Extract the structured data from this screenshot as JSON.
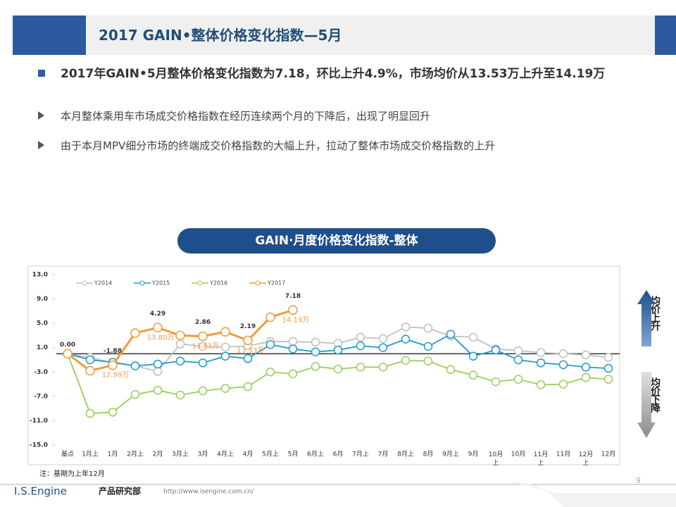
{
  "header": {
    "title": "2017 GAIN•整体价格变化指数—5月"
  },
  "bullets": {
    "main": "2017年GAIN•5月整体价格变化指数为7.18，环比上升4.9%，市场均价从13.53万上升至14.19万",
    "items": [
      "本月整体乘用车市场成交价格指数在经历连续两个月的下降后，出现了明显回升",
      "由于本月MPV细分市场的终端成交价格指数的大幅上升，拉动了整体市场成交价格指数的上升"
    ]
  },
  "chart_data": {
    "type": "line",
    "title": "GAIN·月度价格变化指数-整体",
    "categories": [
      "基点",
      "1月上",
      "1月",
      "2月上",
      "2月",
      "3月上",
      "3月",
      "4月上",
      "4月",
      "5月上",
      "5月",
      "6月上",
      "6月",
      "7月上",
      "7月",
      "8月上",
      "8月",
      "9月上",
      "9月",
      "10月上",
      "10月",
      "11月上",
      "11月",
      "12月上",
      "12月"
    ],
    "series": [
      {
        "name": "Y2014",
        "color": "#c0c0c0",
        "values": [
          0,
          -0.6,
          -1.5,
          -2.0,
          -2.9,
          1.6,
          1.2,
          1.1,
          1.3,
          2.0,
          2.0,
          1.9,
          1.7,
          2.7,
          2.5,
          4.4,
          4.2,
          2.9,
          2.7,
          0.8,
          0.5,
          0.2,
          0.0,
          -0.2,
          -0.6
        ]
      },
      {
        "name": "Y2015",
        "color": "#1f9bc9",
        "values": [
          0,
          -1.0,
          -1.4,
          -2.0,
          -1.7,
          -1.2,
          -1.5,
          -0.4,
          -0.8,
          1.5,
          0.8,
          0.3,
          0.6,
          1.3,
          1.0,
          2.4,
          1.2,
          3.2,
          -0.4,
          0.6,
          -1.0,
          -1.5,
          -1.8,
          -2.2,
          -2.4
        ]
      },
      {
        "name": "Y2016",
        "color": "#9acd5a",
        "values": [
          0,
          -9.8,
          -9.6,
          -6.7,
          -6.0,
          -6.8,
          -6.1,
          -5.7,
          -5.4,
          -3.0,
          -3.3,
          -2.1,
          -2.5,
          -2.2,
          -2.2,
          -1.1,
          -1.2,
          -2.6,
          -3.5,
          -4.6,
          -4.2,
          -5.1,
          -5.0,
          -3.9,
          -4.2
        ]
      },
      {
        "name": "Y2017",
        "color": "#f39a3c",
        "values": [
          0,
          -2.8,
          -1.88,
          3.4,
          4.29,
          3.0,
          2.86,
          3.6,
          2.19,
          6.0,
          7.18,
          null,
          null,
          null,
          null,
          null,
          null,
          null,
          null,
          null,
          null,
          null,
          null,
          null,
          null
        ],
        "value_labels": [
          "0.00",
          null,
          "-1.88",
          null,
          "4.29",
          null,
          "2.86",
          null,
          "2.19",
          null,
          "7.18",
          null,
          null,
          null,
          null,
          null,
          null,
          null,
          null,
          null,
          null,
          null,
          null,
          null,
          null
        ]
      }
    ],
    "ylim": [
      -15,
      13
    ],
    "yticks": [
      {
        "value": 13,
        "label": "13.0"
      },
      {
        "value": 9,
        "label": "9.0"
      },
      {
        "value": 5,
        "label": "5.0"
      },
      {
        "value": 1,
        "label": "1.0"
      },
      {
        "value": -3,
        "label": "-3.0"
      },
      {
        "value": -7,
        "label": "-7.0"
      },
      {
        "value": -11,
        "label": "-11.0"
      },
      {
        "value": -15,
        "label": "-15.0"
      }
    ],
    "grid": false,
    "annotations": [
      {
        "category": "1月",
        "text": "12.99万"
      },
      {
        "category": "2月",
        "text": "13.80万"
      },
      {
        "category": "3月",
        "text": "13.61万"
      },
      {
        "category": "4月",
        "text": "13.53万"
      },
      {
        "category": "5月",
        "text": "14.19万"
      }
    ],
    "side_labels": [
      "均价上升",
      "均价下降"
    ],
    "note": "注：基期为上年12月"
  },
  "footer": {
    "brand": "I.S.Engine",
    "dept": "产品研究部",
    "url": "http://www.isengine.com.cn/",
    "page": "9"
  }
}
